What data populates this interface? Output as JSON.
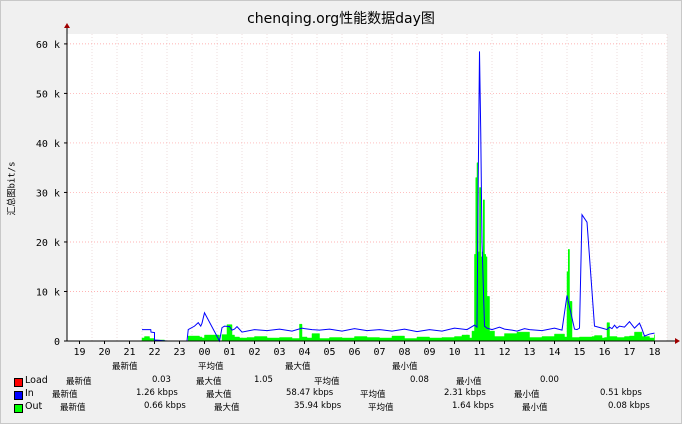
{
  "chart_data": {
    "type": "area",
    "title": "chenqing.org性能数据day图",
    "ylabel": "汇总图bit/s",
    "xlabel": "",
    "ylim": [
      0,
      62000
    ],
    "yticks": [
      0,
      10000,
      20000,
      30000,
      40000,
      50000,
      60000
    ],
    "ytick_labels": [
      "0",
      "10 k",
      "20 k",
      "30 k",
      "40 k",
      "50 k",
      "60 k"
    ],
    "x_tick_labels": [
      "19",
      "20",
      "21",
      "22",
      "23",
      "00",
      "01",
      "02",
      "03",
      "04",
      "05",
      "06",
      "07",
      "08",
      "09",
      "10",
      "11",
      "12",
      "13",
      "14",
      "15",
      "16",
      "17",
      "18"
    ],
    "grid": true,
    "series": [
      {
        "name": "Load",
        "color": "#ff0000",
        "style": "line",
        "values": [],
        "x": []
      },
      {
        "name": "In",
        "color": "#0000ff",
        "style": "line",
        "x": [
          21.5,
          21.85,
          21.86,
          22,
          22.0,
          22.5,
          23.3,
          23.35,
          23.6,
          23.75,
          23.85,
          23.9,
          24.0,
          24.6,
          24.7,
          24.8,
          25.0,
          25.1,
          25.2,
          25.3,
          25.5,
          26,
          26.5,
          27,
          27.5,
          27.9,
          28,
          28.3,
          28.6,
          29,
          29.5,
          30,
          30.5,
          31,
          31.5,
          32,
          32.5,
          33,
          33.5,
          34,
          34.5,
          34.8,
          34.9,
          34.95,
          35.0,
          35.05,
          35.1,
          35.2,
          35.3,
          35.5,
          35.8,
          36,
          36.3,
          36.5,
          36.8,
          37,
          37.5,
          38,
          38.3,
          38.5,
          38.8,
          38.9,
          39.0,
          39.05,
          39.1,
          39.3,
          39.6,
          39.9,
          40.1,
          40.2,
          40.3,
          40.4,
          40.5,
          40.6,
          40.8,
          41,
          41.2,
          41.4,
          41.5,
          41.6,
          41.8,
          42.0
        ],
        "y": [
          2300,
          2300,
          1800,
          1700,
          200,
          0,
          0,
          2300,
          3000,
          3700,
          3000,
          3600,
          5700,
          0,
          2700,
          3000,
          2900,
          2200,
          2400,
          2900,
          1800,
          2300,
          2100,
          2400,
          2000,
          2600,
          2500,
          2300,
          2200,
          2400,
          2000,
          2500,
          2100,
          2300,
          2000,
          2400,
          1900,
          2300,
          2000,
          2600,
          2300,
          3200,
          2800,
          33000,
          58500,
          42000,
          20000,
          3000,
          2600,
          2300,
          2800,
          2400,
          2200,
          2000,
          2500,
          2300,
          2100,
          2600,
          2200,
          9200,
          2400,
          2300,
          2600,
          14000,
          25500,
          24000,
          3000,
          2600,
          2300,
          2800,
          2500,
          3200,
          2600,
          3000,
          2800,
          3900,
          2600,
          3600,
          2400,
          1000,
          1400,
          1600
        ]
      },
      {
        "name": "Out",
        "color": "#00ff00",
        "style": "area",
        "x": [
          21.5,
          21.6,
          21.8,
          22,
          22.4,
          23.3,
          23.35,
          23.8,
          23.9,
          24.0,
          24.6,
          24.7,
          24.9,
          25.1,
          25.2,
          25.4,
          25.7,
          26,
          26.5,
          27,
          27.5,
          27.8,
          27.9,
          28.1,
          28.3,
          28.6,
          29,
          29.5,
          30,
          30.5,
          31,
          31.5,
          32,
          32.5,
          33,
          33.5,
          34,
          34.3,
          34.6,
          34.7,
          34.8,
          34.85,
          34.9,
          34.95,
          35.0,
          35.05,
          35.1,
          35.15,
          35.2,
          35.25,
          35.3,
          35.4,
          35.6,
          36,
          36.5,
          37,
          37.5,
          38,
          38.4,
          38.5,
          38.55,
          38.6,
          38.7,
          39,
          39.5,
          39.6,
          39.9,
          40.0,
          40.1,
          40.2,
          40.5,
          40.8,
          41,
          41.2,
          41.5,
          41.8,
          42.0
        ],
        "y": [
          600,
          900,
          500,
          200,
          0,
          0,
          1000,
          800,
          600,
          1200,
          0,
          1300,
          3300,
          1200,
          800,
          600,
          700,
          900,
          600,
          700,
          500,
          3400,
          800,
          600,
          1500,
          500,
          700,
          600,
          900,
          700,
          600,
          1000,
          500,
          800,
          600,
          700,
          900,
          1200,
          600,
          2000,
          17500,
          33000,
          36000,
          18000,
          31000,
          17000,
          18000,
          28500,
          17500,
          17000,
          9000,
          2000,
          900,
          1500,
          1800,
          700,
          900,
          1400,
          800,
          14000,
          18500,
          8000,
          700,
          800,
          900,
          1100,
          600,
          700,
          3700,
          900,
          700,
          900,
          1000,
          1800,
          900,
          600,
          1300
        ]
      }
    ]
  },
  "legend_header": {
    "latest": "最新值",
    "avg": "平均值",
    "max": "最大值",
    "min": "最小值"
  },
  "legend": {
    "load": {
      "name": "Load",
      "label_latest": "最新值",
      "latest": "0.03",
      "label_max": "最大值",
      "max": "1.05",
      "label_avg": "平均值",
      "avg": "0.08",
      "label_min": "最小值",
      "min": "0.00",
      "color": "#ff0000"
    },
    "in": {
      "name": "In",
      "label_latest": "最新值",
      "latest": "1.26 kbps",
      "label_max": "最大值",
      "max": "58.47 kbps",
      "label_avg": "平均值",
      "avg": "2.31 kbps",
      "label_min": "最小值",
      "min": "0.51 kbps",
      "color": "#0000ff"
    },
    "out": {
      "name": "Out",
      "label_latest": "最新值",
      "latest": "0.66 kbps",
      "label_max": "最大值",
      "max": "35.94 kbps",
      "label_avg": "平均值",
      "avg": "1.64 kbps",
      "label_min": "最小值",
      "min": "0.08 kbps",
      "color": "#00ff00"
    }
  }
}
